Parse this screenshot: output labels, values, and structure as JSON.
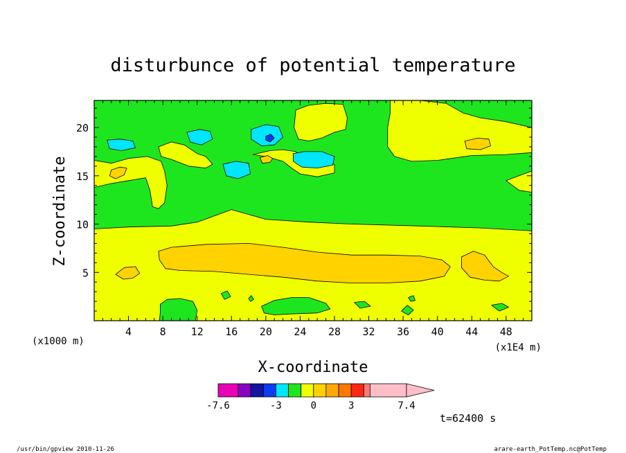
{
  "chart_data": {
    "type": "heatmap",
    "title": "disturbunce of potential temperature",
    "xlabel": "X-coordinate",
    "ylabel": "Z-coordinate",
    "x_unit_left": "(x1000 m)",
    "x_unit_right": "(x1E4 m)",
    "xlim": [
      0,
      51
    ],
    "ylim": [
      0,
      22.8
    ],
    "x_ticks": [
      4,
      8,
      12,
      16,
      20,
      24,
      28,
      32,
      36,
      40,
      44,
      48
    ],
    "y_ticks": [
      5,
      10,
      15,
      20
    ],
    "x_tick_labels": [
      "4",
      "8",
      "12",
      "16",
      "20",
      "24",
      "28",
      "32",
      "36",
      "40",
      "44",
      "48"
    ],
    "y_tick_labels": [
      "5",
      "10",
      "15",
      "20"
    ],
    "colorbar": {
      "range": [
        -7.6,
        7.4
      ],
      "levels": [
        -7.6,
        -6.0,
        -5.0,
        -4.0,
        -3.0,
        -2.0,
        -1.0,
        0.0,
        1.0,
        2.0,
        3.0,
        4.0,
        4.5,
        7.4
      ],
      "colors": [
        "#e800b4",
        "#8c00c0",
        "#1414a0",
        "#0a3cf0",
        "#00e6ff",
        "#1ee61e",
        "#f0ff00",
        "#ffd200",
        "#ffaa00",
        "#ff7800",
        "#ff2814",
        "#ff7878",
        "#ffbec8"
      ],
      "labels": [
        "-7.6",
        "-3",
        "0",
        "3",
        "7.4"
      ]
    },
    "time_label": "t=62400 s",
    "regions": [
      {
        "color": "#1ee61e",
        "points": [
          [
            0,
            9.5
          ],
          [
            0,
            22.8
          ],
          [
            51,
            22.8
          ],
          [
            51,
            9.3
          ],
          [
            45,
            9.6
          ],
          [
            38,
            9.8
          ],
          [
            30,
            10
          ],
          [
            25,
            10.2
          ],
          [
            20,
            10.5
          ],
          [
            16,
            11.5
          ],
          [
            12,
            10.2
          ],
          [
            9,
            9.8
          ],
          [
            4,
            9.7
          ]
        ]
      },
      {
        "color": "#f0ff00",
        "points": [
          [
            0,
            13.8
          ],
          [
            2,
            14.2
          ],
          [
            4,
            14.5
          ],
          [
            6,
            14.8
          ],
          [
            6.5,
            13.5
          ],
          [
            6.8,
            11.8
          ],
          [
            7.5,
            11.6
          ],
          [
            8.2,
            12.2
          ],
          [
            8.5,
            14
          ],
          [
            8.2,
            15.5
          ],
          [
            7.8,
            16.5
          ],
          [
            6.2,
            17
          ],
          [
            4,
            16.8
          ],
          [
            2,
            16.3
          ],
          [
            0,
            16.6
          ]
        ]
      },
      {
        "color": "#f0ff00",
        "points": [
          [
            7.5,
            18
          ],
          [
            9,
            18.5
          ],
          [
            10.5,
            18.2
          ],
          [
            12,
            17.3
          ],
          [
            13,
            17
          ],
          [
            13.8,
            16.2
          ],
          [
            13,
            15.8
          ],
          [
            11,
            16
          ],
          [
            9,
            16.7
          ],
          [
            7.8,
            17
          ]
        ]
      },
      {
        "color": "#f0ff00",
        "points": [
          [
            18.5,
            17.2
          ],
          [
            20,
            17
          ],
          [
            22,
            16.5
          ],
          [
            23,
            15.8
          ],
          [
            24,
            15.2
          ],
          [
            26,
            14.9
          ],
          [
            28,
            15.3
          ],
          [
            28,
            16.2
          ],
          [
            26,
            16.2
          ],
          [
            24.5,
            16.5
          ],
          [
            23.5,
            17.5
          ],
          [
            22,
            17.7
          ],
          [
            20.5,
            17.6
          ]
        ]
      },
      {
        "color": "#f0ff00",
        "points": [
          [
            23.5,
            21.8
          ],
          [
            25,
            22.3
          ],
          [
            27,
            22.5
          ],
          [
            29,
            22.4
          ],
          [
            29.5,
            21
          ],
          [
            29.3,
            19.8
          ],
          [
            28,
            19.5
          ],
          [
            26.5,
            18.9
          ],
          [
            25,
            18.6
          ],
          [
            23.8,
            18.8
          ],
          [
            23.3,
            20
          ]
        ]
      },
      {
        "color": "#f0ff00",
        "points": [
          [
            34.5,
            22.8
          ],
          [
            38,
            22.8
          ],
          [
            41,
            22.5
          ],
          [
            43,
            21.5
          ],
          [
            45,
            21
          ],
          [
            48,
            20.6
          ],
          [
            51,
            20
          ],
          [
            51,
            17.4
          ],
          [
            48,
            17.2
          ],
          [
            44,
            17.1
          ],
          [
            40,
            16.6
          ],
          [
            37,
            16.5
          ],
          [
            35,
            17
          ],
          [
            34.2,
            18
          ],
          [
            34.2,
            20
          ],
          [
            34.5,
            21.5
          ]
        ]
      },
      {
        "color": "#f0ff00",
        "points": [
          [
            48,
            14.5
          ],
          [
            49.5,
            15
          ],
          [
            51,
            15.5
          ],
          [
            51,
            13.3
          ],
          [
            49.5,
            13.5
          ]
        ]
      },
      {
        "color": "#00e6ff",
        "points": [
          [
            1.5,
            18.7
          ],
          [
            3,
            18.8
          ],
          [
            4.5,
            18.6
          ],
          [
            4.8,
            17.9
          ],
          [
            3.2,
            17.6
          ],
          [
            1.8,
            17.8
          ]
        ]
      },
      {
        "color": "#00e6ff",
        "points": [
          [
            10.8,
            19.5
          ],
          [
            12.3,
            19.8
          ],
          [
            13.5,
            19.6
          ],
          [
            13.8,
            18.8
          ],
          [
            12.5,
            18.2
          ],
          [
            11.2,
            18.5
          ]
        ]
      },
      {
        "color": "#00e6ff",
        "points": [
          [
            15,
            16.2
          ],
          [
            16.5,
            16.5
          ],
          [
            18,
            16.3
          ],
          [
            18.2,
            15.2
          ],
          [
            16.8,
            14.7
          ],
          [
            15.4,
            15
          ]
        ]
      },
      {
        "color": "#00e6ff",
        "points": [
          [
            18.3,
            19.8
          ],
          [
            20,
            20.3
          ],
          [
            21.5,
            20.1
          ],
          [
            22,
            19
          ],
          [
            21,
            18.2
          ],
          [
            19.5,
            18.1
          ],
          [
            18.3,
            18.8
          ]
        ]
      },
      {
        "color": "#00e6ff",
        "points": [
          [
            23.2,
            17.3
          ],
          [
            24.5,
            17.5
          ],
          [
            26.5,
            17.5
          ],
          [
            28,
            17
          ],
          [
            27.8,
            16.1
          ],
          [
            26,
            15.8
          ],
          [
            24.2,
            15.9
          ],
          [
            23.2,
            16.5
          ]
        ]
      },
      {
        "color": "#0a3cf0",
        "points": [
          [
            20,
            19.1
          ],
          [
            20.6,
            19.3
          ],
          [
            21,
            18.9
          ],
          [
            20.5,
            18.5
          ],
          [
            20,
            18.7
          ]
        ]
      },
      {
        "color": "#ffd200",
        "points": [
          [
            2,
            15.6
          ],
          [
            3,
            15.9
          ],
          [
            3.8,
            15.8
          ],
          [
            3.5,
            15.1
          ],
          [
            2.5,
            14.7
          ],
          [
            1.8,
            15
          ]
        ]
      },
      {
        "color": "#ffd200",
        "points": [
          [
            19.3,
            16.9
          ],
          [
            20.2,
            17.1
          ],
          [
            20.8,
            16.8
          ],
          [
            20.5,
            16.4
          ],
          [
            19.6,
            16.3
          ]
        ]
      },
      {
        "color": "#ffd200",
        "points": [
          [
            43.2,
            18.6
          ],
          [
            44.7,
            18.9
          ],
          [
            46,
            18.8
          ],
          [
            46.2,
            18.1
          ],
          [
            45,
            17.7
          ],
          [
            43.4,
            17.8
          ]
        ]
      },
      {
        "color": "#ffd200",
        "points": [
          [
            7.5,
            7.2
          ],
          [
            9,
            7.6
          ],
          [
            13,
            7.9
          ],
          [
            18,
            8
          ],
          [
            22,
            7.6
          ],
          [
            26,
            7.1
          ],
          [
            30,
            6.8
          ],
          [
            34,
            6.8
          ],
          [
            38,
            6.7
          ],
          [
            40.5,
            6.3
          ],
          [
            41.5,
            5.6
          ],
          [
            40.8,
            4.6
          ],
          [
            38,
            4.1
          ],
          [
            34,
            3.9
          ],
          [
            30,
            3.9
          ],
          [
            26,
            4.1
          ],
          [
            22,
            4.5
          ],
          [
            18,
            4.8
          ],
          [
            14,
            5.1
          ],
          [
            10,
            5.2
          ],
          [
            8.3,
            5.4
          ],
          [
            7.6,
            6.3
          ]
        ]
      },
      {
        "color": "#ffd200",
        "points": [
          [
            2.5,
            4.8
          ],
          [
            3.5,
            5.5
          ],
          [
            4.8,
            5.6
          ],
          [
            5.3,
            4.9
          ],
          [
            4.5,
            4.4
          ],
          [
            3.4,
            4.3
          ]
        ]
      },
      {
        "color": "#ffd200",
        "points": [
          [
            42.8,
            6.6
          ],
          [
            44.2,
            7.2
          ],
          [
            45.5,
            6.8
          ],
          [
            46.5,
            5.6
          ],
          [
            47.5,
            5
          ],
          [
            48.3,
            4.6
          ],
          [
            47.2,
            4.1
          ],
          [
            45.5,
            4.2
          ],
          [
            43.8,
            4.5
          ],
          [
            42.8,
            5.5
          ]
        ]
      },
      {
        "color": "#1ee61e",
        "points": [
          [
            7.7,
            1.7
          ],
          [
            8.5,
            2.2
          ],
          [
            10,
            2.3
          ],
          [
            11.5,
            2
          ],
          [
            12,
            1.1
          ],
          [
            11.8,
            0
          ],
          [
            7.6,
            0
          ],
          [
            7.7,
            0.8
          ]
        ]
      },
      {
        "color": "#1ee61e",
        "points": [
          [
            19.5,
            1.5
          ],
          [
            21,
            2.1
          ],
          [
            23,
            2.4
          ],
          [
            25,
            2.4
          ],
          [
            27,
            1.8
          ],
          [
            27.5,
            1.2
          ],
          [
            26,
            0.8
          ],
          [
            23,
            0.7
          ],
          [
            21,
            0.6
          ],
          [
            19.8,
            0.8
          ]
        ]
      },
      {
        "color": "#1ee61e",
        "points": [
          [
            14.8,
            2.8
          ],
          [
            15.5,
            3.1
          ],
          [
            15.9,
            2.5
          ],
          [
            15.2,
            2.2
          ]
        ]
      },
      {
        "color": "#1ee61e",
        "points": [
          [
            30.3,
            1.9
          ],
          [
            31.5,
            2
          ],
          [
            32.2,
            1.5
          ],
          [
            31,
            1.3
          ]
        ]
      },
      {
        "color": "#1ee61e",
        "points": [
          [
            35.8,
            1
          ],
          [
            36.5,
            1.6
          ],
          [
            37.2,
            1.1
          ],
          [
            36.6,
            0.6
          ]
        ]
      },
      {
        "color": "#1ee61e",
        "points": [
          [
            46.3,
            1.6
          ],
          [
            47.5,
            1.8
          ],
          [
            48.3,
            1.4
          ],
          [
            47.2,
            1
          ]
        ]
      },
      {
        "color": "#1ee61e",
        "points": [
          [
            18,
            2.3
          ],
          [
            18.3,
            2.6
          ],
          [
            18.6,
            2.2
          ],
          [
            18.2,
            2
          ]
        ]
      },
      {
        "color": "#1ee61e",
        "points": [
          [
            36.6,
            2.4
          ],
          [
            37.2,
            2.6
          ],
          [
            37.4,
            2.1
          ],
          [
            36.9,
            2
          ]
        ]
      }
    ]
  },
  "footer": {
    "left": "/usr/bin/gpview 2010-11-26",
    "right": "arare-earth_PotTemp.nc@PotTemp"
  }
}
